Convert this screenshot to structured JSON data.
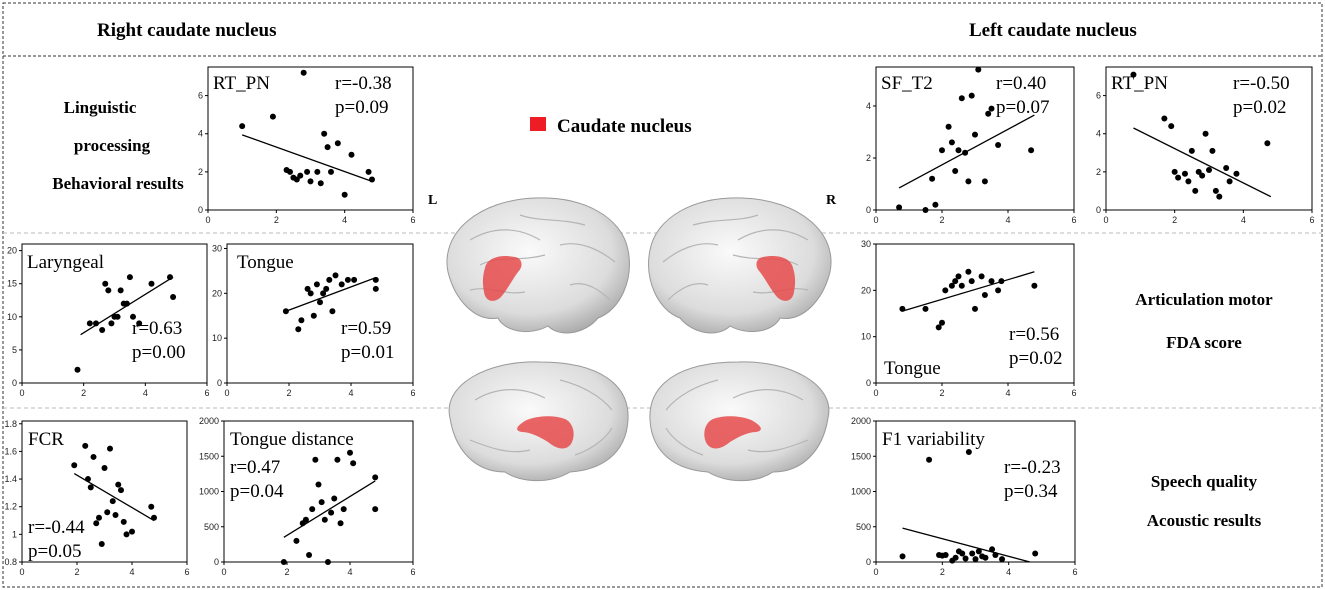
{
  "headers": {
    "right": "Right caudate nucleus",
    "left": "Left caudate nucleus"
  },
  "sections": {
    "ling": [
      "Linguistic",
      "processing",
      "Behavioral results"
    ],
    "artic": [
      "Articulation motor",
      "FDA score"
    ],
    "speech": [
      "Speech quality",
      "Acoustic results"
    ]
  },
  "legend": {
    "label": "Caudate nucleus",
    "color": "#ee1c25"
  },
  "hemisphere_labels": {
    "left": "L",
    "right": "R"
  },
  "chart_data": [
    {
      "type": "scatter",
      "title": "RT_PN",
      "annotation": [
        "r=-0.38",
        "p=0.09"
      ],
      "xlim": [
        0,
        6
      ],
      "ylim": [
        0,
        7.5
      ],
      "xticks": [
        0,
        2,
        4,
        6
      ],
      "yticks": [
        0,
        2,
        4,
        6
      ],
      "x": [
        1.0,
        1.9,
        2.3,
        2.4,
        2.5,
        2.6,
        2.7,
        2.8,
        2.9,
        3.0,
        3.2,
        3.3,
        3.4,
        3.5,
        3.6,
        3.8,
        4.0,
        4.2,
        4.7,
        4.8
      ],
      "y": [
        4.4,
        4.9,
        2.1,
        2.0,
        1.7,
        1.6,
        1.8,
        7.2,
        2.0,
        1.5,
        2.0,
        1.4,
        4.0,
        3.3,
        2.0,
        3.5,
        0.8,
        2.9,
        2.0,
        1.6
      ],
      "fit": [
        [
          1.0,
          3.94
        ],
        [
          4.8,
          1.5
        ]
      ]
    },
    {
      "type": "scatter",
      "title": "SF_T2",
      "annotation": [
        "r=0.40",
        "p=0.07"
      ],
      "xlim": [
        0,
        6
      ],
      "ylim": [
        0,
        5.5
      ],
      "xticks": [
        0,
        2,
        4,
        6
      ],
      "yticks": [
        0,
        2,
        4
      ],
      "x": [
        0.7,
        1.5,
        1.7,
        1.8,
        2.0,
        2.2,
        2.3,
        2.4,
        2.5,
        2.6,
        2.7,
        2.8,
        2.9,
        3.0,
        3.1,
        3.3,
        3.4,
        3.5,
        3.7,
        4.7
      ],
      "y": [
        0.1,
        0.0,
        1.2,
        0.2,
        2.3,
        3.2,
        2.6,
        1.5,
        2.3,
        4.3,
        2.2,
        1.1,
        4.4,
        2.9,
        5.4,
        1.1,
        3.7,
        3.9,
        2.5,
        2.3
      ],
      "fit": [
        [
          0.7,
          0.85
        ],
        [
          4.8,
          3.65
        ]
      ]
    },
    {
      "type": "scatter",
      "title": "RT_PN",
      "annotation": [
        "r=-0.50",
        "p=0.02"
      ],
      "xlim": [
        0,
        6
      ],
      "ylim": [
        0,
        7.5
      ],
      "xticks": [
        0,
        2,
        4,
        6
      ],
      "yticks": [
        0,
        2,
        4,
        6
      ],
      "x": [
        0.8,
        1.7,
        1.9,
        2.0,
        2.1,
        2.3,
        2.4,
        2.5,
        2.6,
        2.7,
        2.8,
        2.9,
        3.0,
        3.1,
        3.2,
        3.3,
        3.5,
        3.6,
        3.8,
        4.7
      ],
      "y": [
        7.1,
        4.8,
        4.4,
        2.0,
        1.7,
        1.9,
        1.5,
        3.1,
        1.0,
        2.0,
        1.8,
        4.0,
        2.1,
        3.1,
        1.0,
        0.7,
        2.2,
        1.5,
        1.9,
        3.5
      ],
      "fit": [
        [
          0.8,
          4.3
        ],
        [
          4.8,
          0.7
        ]
      ]
    },
    {
      "type": "scatter",
      "title": "Laryngeal",
      "annotation": [
        "r=0.63",
        "p=0.00"
      ],
      "xlim": [
        0,
        6
      ],
      "ylim": [
        0,
        21
      ],
      "xticks": [
        0,
        2,
        4,
        6
      ],
      "yticks": [
        0,
        5,
        10,
        15,
        20
      ],
      "x": [
        1.8,
        2.2,
        2.4,
        2.6,
        2.7,
        2.8,
        2.9,
        3.0,
        3.1,
        3.2,
        3.3,
        3.4,
        3.5,
        3.6,
        3.8,
        4.2,
        4.8,
        4.9
      ],
      "y": [
        2.0,
        9.0,
        9.0,
        8.0,
        15.0,
        14.0,
        9.0,
        10.0,
        10.0,
        14.0,
        12.0,
        12.0,
        16.0,
        10.0,
        9.0,
        15.0,
        16.0,
        13.0
      ],
      "fit": [
        [
          1.9,
          7.3
        ],
        [
          4.9,
          16.0
        ]
      ]
    },
    {
      "type": "scatter",
      "title": "Tongue",
      "annotation": [
        "r=0.59",
        "p=0.01"
      ],
      "xlim": [
        0,
        6
      ],
      "ylim": [
        0,
        31
      ],
      "xticks": [
        0,
        2,
        4,
        6
      ],
      "yticks": [
        0,
        10,
        20,
        30
      ],
      "x": [
        1.9,
        2.3,
        2.4,
        2.6,
        2.7,
        2.8,
        2.9,
        3.0,
        3.1,
        3.2,
        3.3,
        3.4,
        3.5,
        3.7,
        3.9,
        4.1,
        4.8,
        4.8
      ],
      "y": [
        16.0,
        12.0,
        14.0,
        21.0,
        20.0,
        15.0,
        22.0,
        18.0,
        20.0,
        21.0,
        23.0,
        16.0,
        24.0,
        22.0,
        23.0,
        23.0,
        23.0,
        21.0
      ],
      "fit": [
        [
          1.9,
          16.0
        ],
        [
          4.8,
          23.5
        ]
      ]
    },
    {
      "type": "scatter",
      "title": "Tongue",
      "annotation": [
        "r=0.56",
        "p=0.02"
      ],
      "xlim": [
        0,
        6
      ],
      "ylim": [
        0,
        30
      ],
      "xticks": [
        0,
        2,
        4,
        6
      ],
      "yticks": [
        0,
        10,
        20,
        30
      ],
      "x": [
        0.8,
        1.5,
        1.9,
        2.0,
        2.1,
        2.3,
        2.4,
        2.5,
        2.6,
        2.8,
        2.9,
        3.0,
        3.2,
        3.3,
        3.5,
        3.7,
        3.8,
        4.8
      ],
      "y": [
        16.0,
        16.0,
        12.0,
        13.0,
        20.0,
        21.0,
        22.0,
        23.0,
        21.0,
        24.0,
        22.0,
        16.0,
        23.0,
        19.0,
        22.0,
        20.0,
        22.0,
        21.0
      ],
      "fit": [
        [
          0.8,
          15.5
        ],
        [
          4.8,
          24.0
        ]
      ]
    },
    {
      "type": "scatter",
      "title": "FCR",
      "annotation": [
        "r=-0.44",
        "p=0.05"
      ],
      "xlim": [
        0,
        6
      ],
      "ylim": [
        0.8,
        1.82
      ],
      "xticks": [
        0,
        2,
        4,
        6
      ],
      "yticks": [
        0.8,
        1.0,
        1.2,
        1.4,
        1.6,
        1.8
      ],
      "x": [
        1.9,
        2.3,
        2.4,
        2.5,
        2.6,
        2.7,
        2.8,
        2.9,
        3.0,
        3.1,
        3.2,
        3.3,
        3.4,
        3.5,
        3.6,
        3.7,
        3.8,
        4.0,
        4.7,
        4.8
      ],
      "y": [
        1.5,
        1.64,
        1.4,
        1.34,
        1.56,
        1.08,
        1.12,
        0.93,
        1.48,
        1.16,
        1.62,
        1.24,
        1.14,
        1.36,
        1.32,
        1.09,
        1.0,
        1.02,
        1.2,
        1.12
      ],
      "fit": [
        [
          1.9,
          1.44
        ],
        [
          4.8,
          1.1
        ]
      ]
    },
    {
      "type": "scatter",
      "title": "Tongue distance",
      "annotation": [
        "r=0.47",
        "p=0.04"
      ],
      "xlim": [
        0,
        6
      ],
      "ylim": [
        0,
        2000
      ],
      "xticks": [
        0,
        2,
        4,
        6
      ],
      "yticks": [
        0,
        500,
        1000,
        1500,
        2000
      ],
      "x": [
        1.9,
        2.3,
        2.5,
        2.6,
        2.7,
        2.8,
        2.9,
        3.0,
        3.1,
        3.2,
        3.3,
        3.4,
        3.5,
        3.6,
        3.7,
        3.8,
        4.0,
        4.1,
        4.8,
        4.8
      ],
      "y": [
        0,
        300,
        550,
        600,
        100,
        750,
        1450,
        1100,
        850,
        600,
        0,
        700,
        900,
        1450,
        550,
        750,
        1550,
        1400,
        1200,
        750
      ],
      "fit": [
        [
          1.9,
          350
        ],
        [
          4.8,
          1150
        ]
      ]
    },
    {
      "type": "scatter",
      "title": "F1 variability",
      "annotation": [
        "r=-0.23",
        "p=0.34"
      ],
      "xlim": [
        0,
        6
      ],
      "ylim": [
        0,
        2000
      ],
      "xticks": [
        0,
        2,
        4,
        6
      ],
      "yticks": [
        0,
        500,
        1000,
        1500,
        2000
      ],
      "x": [
        0.8,
        1.6,
        1.9,
        2.0,
        2.1,
        2.3,
        2.4,
        2.5,
        2.6,
        2.7,
        2.8,
        2.9,
        3.0,
        3.1,
        3.2,
        3.3,
        3.5,
        3.6,
        3.8,
        4.8
      ],
      "y": [
        80,
        1450,
        100,
        90,
        100,
        20,
        60,
        150,
        120,
        50,
        1560,
        120,
        40,
        150,
        80,
        60,
        180,
        100,
        40,
        120
      ],
      "fit": [
        [
          0.8,
          480
        ],
        [
          4.8,
          -20
        ]
      ]
    }
  ]
}
